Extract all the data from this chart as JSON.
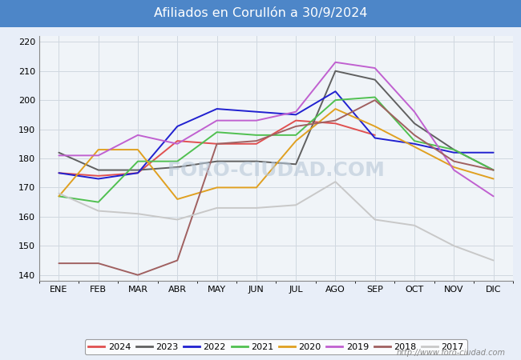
{
  "title": "Afiliados en Corullón a 30/9/2024",
  "title_bg_color": "#4d86c8",
  "title_text_color": "#ffffff",
  "ylim": [
    138,
    222
  ],
  "yticks": [
    140,
    150,
    160,
    170,
    180,
    190,
    200,
    210,
    220
  ],
  "months": [
    "ENE",
    "FEB",
    "MAR",
    "ABR",
    "MAY",
    "JUN",
    "JUL",
    "AGO",
    "SEP",
    "OCT",
    "NOV",
    "DIC"
  ],
  "watermark": "foro-ciudad.com",
  "series": {
    "2024": {
      "color": "#e05050",
      "data": [
        175,
        174,
        175,
        186,
        185,
        185,
        193,
        192,
        188,
        null,
        null,
        null
      ]
    },
    "2023": {
      "color": "#606060",
      "data": [
        182,
        176,
        176,
        177,
        179,
        179,
        178,
        210,
        207,
        192,
        183,
        176
      ]
    },
    "2022": {
      "color": "#2020d0",
      "data": [
        175,
        173,
        175,
        191,
        197,
        196,
        195,
        203,
        187,
        185,
        182,
        182
      ]
    },
    "2021": {
      "color": "#50c050",
      "data": [
        167,
        165,
        179,
        179,
        189,
        188,
        188,
        200,
        201,
        186,
        183,
        176
      ]
    },
    "2020": {
      "color": "#e0a020",
      "data": [
        167,
        183,
        183,
        166,
        170,
        170,
        186,
        197,
        191,
        184,
        177,
        173
      ]
    },
    "2019": {
      "color": "#c060d0",
      "data": [
        181,
        181,
        188,
        185,
        193,
        193,
        196,
        213,
        211,
        196,
        176,
        167
      ]
    },
    "2018": {
      "color": "#a06060",
      "data": [
        144,
        144,
        140,
        145,
        185,
        186,
        191,
        193,
        200,
        188,
        179,
        176
      ]
    },
    "2017": {
      "color": "#c8c8c8",
      "data": [
        168,
        162,
        161,
        159,
        163,
        163,
        164,
        172,
        159,
        157,
        150,
        145
      ]
    }
  },
  "legend_order": [
    "2024",
    "2023",
    "2022",
    "2021",
    "2020",
    "2019",
    "2018",
    "2017"
  ],
  "background_color": "#e8eef8",
  "plot_bg_color": "#f0f4f8",
  "grid_color": "#d0d8e0",
  "watermark_color": "#b8c8d8"
}
